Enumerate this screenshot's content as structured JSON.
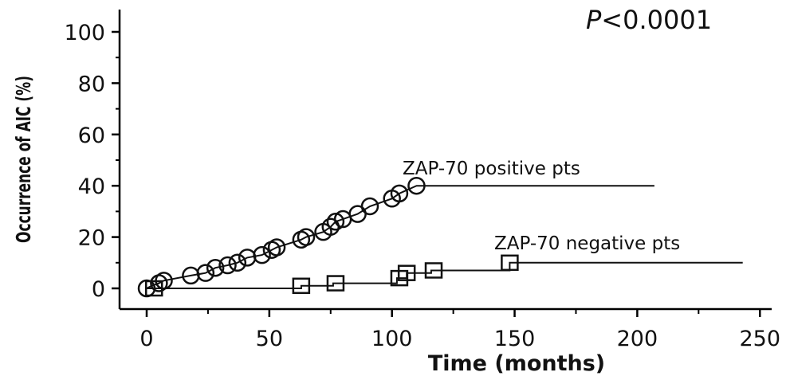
{
  "chart_data": {
    "type": "line",
    "title": "",
    "xlabel": "Time (months)",
    "ylabel": "Occurrence of AIC (%)",
    "xlim": [
      0,
      250
    ],
    "ylim": [
      0,
      100
    ],
    "xticks": [
      0,
      50,
      100,
      150,
      200,
      250
    ],
    "yticks": [
      0,
      20,
      40,
      60,
      80,
      100
    ],
    "x_tick_labels": [
      "0",
      "50",
      "100",
      "150",
      "200",
      "250"
    ],
    "y_tick_labels": [
      "0",
      "20",
      "40",
      "60",
      "80",
      "100"
    ],
    "grid": false,
    "legend": "none",
    "annotations": {
      "p_value_italic": "P",
      "p_value_rest": "<0.0001"
    },
    "series": [
      {
        "name": "ZAP-70 positive pts",
        "marker": "circle",
        "step_points": [
          [
            0,
            0
          ],
          [
            2,
            1
          ],
          [
            5,
            2
          ],
          [
            7,
            3
          ],
          [
            18,
            5
          ],
          [
            24,
            6
          ],
          [
            28,
            8
          ],
          [
            33,
            9
          ],
          [
            37,
            10
          ],
          [
            41,
            12
          ],
          [
            47,
            13
          ],
          [
            51,
            15
          ],
          [
            53,
            16
          ],
          [
            63,
            19
          ],
          [
            65,
            20
          ],
          [
            72,
            22
          ],
          [
            75,
            24
          ],
          [
            77,
            26
          ],
          [
            80,
            27
          ],
          [
            86,
            29
          ],
          [
            91,
            32
          ],
          [
            100,
            35
          ],
          [
            103,
            37
          ],
          [
            110,
            40
          ],
          [
            207,
            40
          ]
        ],
        "markers": [
          [
            0,
            0
          ],
          [
            5,
            2
          ],
          [
            7,
            3
          ],
          [
            18,
            5
          ],
          [
            24,
            6
          ],
          [
            28,
            8
          ],
          [
            33,
            9
          ],
          [
            37,
            10
          ],
          [
            41,
            12
          ],
          [
            47,
            13
          ],
          [
            51,
            15
          ],
          [
            53,
            16
          ],
          [
            63,
            19
          ],
          [
            65,
            20
          ],
          [
            72,
            22
          ],
          [
            75,
            24
          ],
          [
            77,
            26
          ],
          [
            80,
            27
          ],
          [
            86,
            29
          ],
          [
            91,
            32
          ],
          [
            100,
            35
          ],
          [
            103,
            37
          ],
          [
            110,
            40
          ]
        ]
      },
      {
        "name": "ZAP-70 negative pts",
        "marker": "square",
        "step_points": [
          [
            0,
            0
          ],
          [
            63,
            0
          ],
          [
            63,
            1
          ],
          [
            76,
            1
          ],
          [
            76,
            2
          ],
          [
            102,
            2
          ],
          [
            102,
            4
          ],
          [
            106,
            4
          ],
          [
            106,
            6
          ],
          [
            116,
            6
          ],
          [
            116,
            7
          ],
          [
            148,
            7
          ],
          [
            148,
            10
          ],
          [
            243,
            10
          ]
        ],
        "markers": [
          [
            3,
            0
          ],
          [
            63,
            1
          ],
          [
            77,
            2
          ],
          [
            103,
            4
          ],
          [
            106,
            6
          ],
          [
            117,
            7
          ],
          [
            148,
            10
          ]
        ]
      }
    ]
  }
}
